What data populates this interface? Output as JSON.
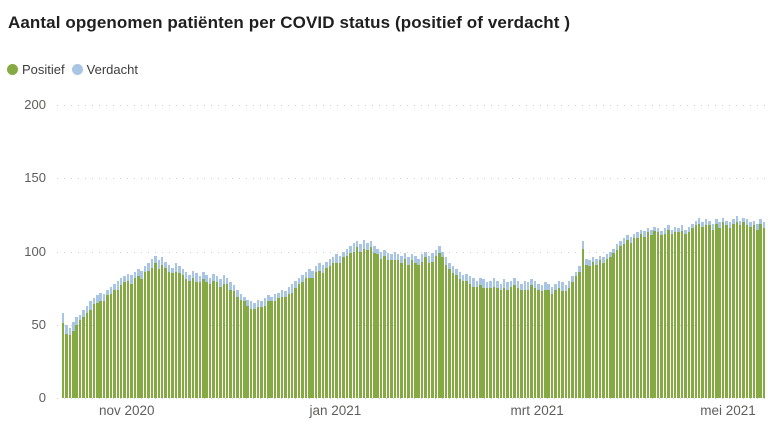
{
  "title": "Aantal opgenomen patiënten per COVID status (positief of verdacht )",
  "legend": {
    "items": [
      {
        "label": "Positief",
        "color": "#86aa43"
      },
      {
        "label": "Verdacht",
        "color": "#a8c6e4"
      }
    ]
  },
  "colors": {
    "positief": "#86aa43",
    "verdacht": "#a8c6e4",
    "axis_text": "#605e5c",
    "title_text": "#1f1f1f",
    "gridline": "#cfcfcf",
    "background": "#ffffff"
  },
  "chart_data": {
    "type": "bar",
    "stacked": true,
    "title": "Aantal opgenomen patiënten per COVID status (positief of verdacht )",
    "xlabel": "",
    "ylabel": "",
    "ylim": [
      0,
      200
    ],
    "y_ticks": [
      0,
      50,
      100,
      150,
      200
    ],
    "grid": "dotted-horizontal",
    "legend_position": "top-left",
    "x_ticks": [
      {
        "label": "nov 2020",
        "day": 19
      },
      {
        "label": "jan 2021",
        "day": 80
      },
      {
        "label": "mrt 2021",
        "day": 139
      },
      {
        "label": "mei 2021",
        "day": 200
      }
    ],
    "series": [
      {
        "name": "Positief",
        "color": "#86aa43",
        "values": [
          51,
          44,
          43,
          46,
          50,
          53,
          55,
          58,
          60,
          64,
          65,
          66,
          66,
          70,
          71,
          74,
          74,
          77,
          79,
          80,
          78,
          82,
          83,
          81,
          86,
          87,
          89,
          92,
          88,
          91,
          89,
          86,
          85,
          86,
          85,
          84,
          81,
          80,
          82,
          79,
          79,
          81,
          79,
          78,
          80,
          79,
          76,
          78,
          78,
          74,
          73,
          69,
          67,
          66,
          63,
          61,
          61,
          62,
          62,
          63,
          66,
          66,
          66,
          68,
          69,
          69,
          71,
          72,
          75,
          78,
          79,
          82,
          82,
          82,
          86,
          87,
          85,
          89,
          90,
          92,
          92,
          92,
          96,
          97,
          99,
          100,
          103,
          100,
          102,
          101,
          103,
          99,
          98,
          95,
          97,
          94,
          94,
          94,
          94,
          92,
          95,
          91,
          94,
          92,
          91,
          93,
          96,
          92,
          93,
          97,
          99,
          96,
          91,
          88,
          85,
          84,
          81,
          80,
          80,
          78,
          76,
          76,
          77,
          75,
          75,
          75,
          76,
          75,
          74,
          75,
          74,
          76,
          77,
          75,
          74,
          74,
          74,
          77,
          75,
          74,
          73,
          74,
          74,
          71,
          74,
          75,
          73,
          73,
          75,
          79,
          83,
          86,
          102,
          91,
          90,
          93,
          91,
          94,
          92,
          95,
          96,
          99,
          101,
          104,
          105,
          108,
          106,
          109,
          109,
          112,
          110,
          113,
          111,
          114,
          113,
          111,
          112,
          115,
          112,
          113,
          113,
          114,
          112,
          113,
          116,
          118,
          119,
          117,
          118,
          118,
          115,
          119,
          116,
          120,
          118,
          116,
          119,
          120,
          118,
          120,
          118,
          117,
          118,
          115,
          119,
          116
        ]
      },
      {
        "name": "Verdacht",
        "color": "#a8c6e4",
        "values": [
          7,
          6,
          5,
          6,
          5,
          4,
          5,
          5,
          6,
          4,
          5,
          6,
          5,
          4,
          5,
          4,
          6,
          5,
          4,
          5,
          6,
          4,
          5,
          6,
          4,
          5,
          6,
          5,
          6,
          5,
          4,
          5,
          4,
          6,
          5,
          4,
          5,
          4,
          5,
          6,
          4,
          5,
          5,
          4,
          5,
          4,
          5,
          6,
          4,
          5,
          4,
          5,
          4,
          3,
          4,
          5,
          4,
          5,
          4,
          5,
          4,
          3,
          5,
          4,
          5,
          4,
          5,
          6,
          5,
          4,
          5,
          4,
          6,
          5,
          4,
          5,
          6,
          4,
          5,
          4,
          6,
          5,
          4,
          5,
          5,
          6,
          4,
          5,
          6,
          5,
          4,
          5,
          4,
          5,
          4,
          5,
          4,
          6,
          4,
          5,
          4,
          5,
          4,
          5,
          4,
          5,
          4,
          5,
          6,
          4,
          5,
          4,
          5,
          4,
          5,
          4,
          5,
          4,
          5,
          5,
          6,
          4,
          5,
          6,
          4,
          5,
          6,
          5,
          4,
          6,
          5,
          4,
          5,
          5,
          4,
          6,
          5,
          4,
          5,
          4,
          4,
          5,
          4,
          5,
          4,
          5,
          6,
          4,
          5,
          4,
          3,
          4,
          5,
          4,
          4,
          3,
          4,
          3,
          4,
          3,
          4,
          3,
          4,
          3,
          4,
          3,
          4,
          3,
          4,
          3,
          4,
          3,
          4,
          3,
          3,
          3,
          4,
          3,
          3,
          4,
          3,
          4,
          3,
          4,
          3,
          3,
          4,
          3,
          4,
          3,
          4,
          3,
          4,
          3,
          3,
          4,
          3,
          4,
          3,
          3,
          4,
          3,
          3,
          4,
          3,
          4
        ]
      }
    ]
  }
}
